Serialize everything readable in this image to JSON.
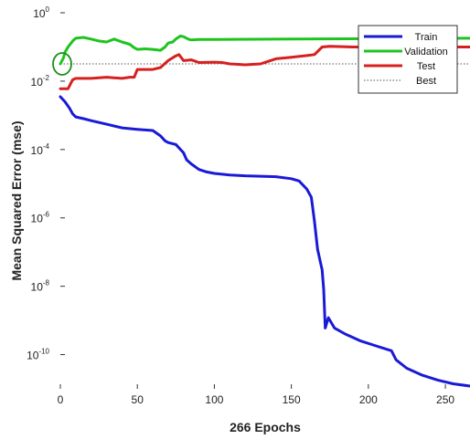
{
  "chart_data": {
    "type": "line",
    "title": "",
    "xlabel": "266 Epochs",
    "ylabel": "Mean Squared Error  (mse)",
    "xlim": [
      0,
      266
    ],
    "ylim": [
      1e-11,
      1
    ],
    "yscale": "log",
    "x_ticks": [
      0,
      50,
      100,
      150,
      200,
      250
    ],
    "y_ticks": [
      {
        "value": 1.0,
        "base": "10",
        "exp": "0"
      },
      {
        "value": 0.01,
        "base": "10",
        "exp": "-2"
      },
      {
        "value": 0.0001,
        "base": "10",
        "exp": "-4"
      },
      {
        "value": 1e-06,
        "base": "10",
        "exp": "-6"
      },
      {
        "value": 1e-08,
        "base": "10",
        "exp": "-8"
      },
      {
        "value": 1e-10,
        "base": "10",
        "exp": "-10"
      }
    ],
    "legend_position": "top-right",
    "grid": false,
    "series": [
      {
        "name": "Train",
        "color": "#1a1ad6",
        "style": "solid",
        "x": [
          0,
          3,
          6,
          8,
          10,
          15,
          20,
          30,
          40,
          50,
          60,
          65,
          68,
          70,
          75,
          80,
          82,
          85,
          90,
          95,
          100,
          110,
          120,
          130,
          140,
          150,
          155,
          160,
          163,
          165,
          167,
          170,
          171,
          172,
          174,
          178,
          185,
          195,
          205,
          215,
          218,
          225,
          235,
          245,
          255,
          266
        ],
        "y": [
          0.0035,
          0.0025,
          0.0016,
          0.0011,
          0.0009,
          0.0008,
          0.0007,
          0.00055,
          0.00043,
          0.00039,
          0.00036,
          0.00025,
          0.00018,
          0.00016,
          0.00014,
          8e-05,
          5e-05,
          3.8e-05,
          2.6e-05,
          2.2e-05,
          2e-05,
          1.8e-05,
          1.7e-05,
          1.65e-05,
          1.6e-05,
          1.4e-05,
          1.2e-05,
          7e-06,
          4e-06,
          8e-07,
          1.2e-07,
          3e-08,
          8e-09,
          6e-10,
          1.2e-09,
          6e-10,
          4e-10,
          2.5e-10,
          1.8e-10,
          1.3e-10,
          7e-11,
          4e-11,
          2.5e-11,
          1.8e-11,
          1.4e-11,
          1.2e-11
        ]
      },
      {
        "name": "Validation",
        "color": "#1ec41e",
        "style": "solid",
        "x": [
          0,
          2,
          3,
          5,
          8,
          10,
          15,
          20,
          25,
          30,
          35,
          40,
          45,
          48,
          50,
          55,
          60,
          65,
          68,
          70,
          73,
          75,
          78,
          80,
          83,
          85,
          90,
          100,
          150,
          200,
          266
        ],
        "y": [
          0.032,
          0.048,
          0.07,
          0.1,
          0.15,
          0.18,
          0.19,
          0.17,
          0.15,
          0.14,
          0.17,
          0.14,
          0.12,
          0.095,
          0.085,
          0.088,
          0.085,
          0.08,
          0.1,
          0.13,
          0.14,
          0.17,
          0.21,
          0.2,
          0.17,
          0.16,
          0.165,
          0.165,
          0.17,
          0.175,
          0.18
        ]
      },
      {
        "name": "Test",
        "color": "#d62020",
        "style": "solid",
        "x": [
          0,
          3,
          5,
          7,
          8,
          10,
          15,
          20,
          30,
          40,
          45,
          48,
          50,
          55,
          60,
          65,
          70,
          75,
          77,
          80,
          85,
          90,
          100,
          105,
          110,
          120,
          130,
          135,
          140,
          150,
          160,
          165,
          170,
          175,
          190,
          210,
          230,
          250,
          266
        ],
        "y": [
          0.006,
          0.006,
          0.006,
          0.009,
          0.011,
          0.012,
          0.012,
          0.012,
          0.013,
          0.012,
          0.013,
          0.013,
          0.022,
          0.022,
          0.022,
          0.025,
          0.04,
          0.055,
          0.06,
          0.04,
          0.042,
          0.035,
          0.036,
          0.035,
          0.032,
          0.03,
          0.032,
          0.038,
          0.045,
          0.05,
          0.056,
          0.06,
          0.1,
          0.105,
          0.1,
          0.1,
          0.1,
          0.1,
          0.1
        ]
      }
    ],
    "best": {
      "name": "Best",
      "color": "#555555",
      "style": "dotted",
      "y": 0.032,
      "marker": {
        "x": 0,
        "y": 0.032,
        "shape": "circle",
        "color": "#1a8f1a"
      }
    }
  }
}
